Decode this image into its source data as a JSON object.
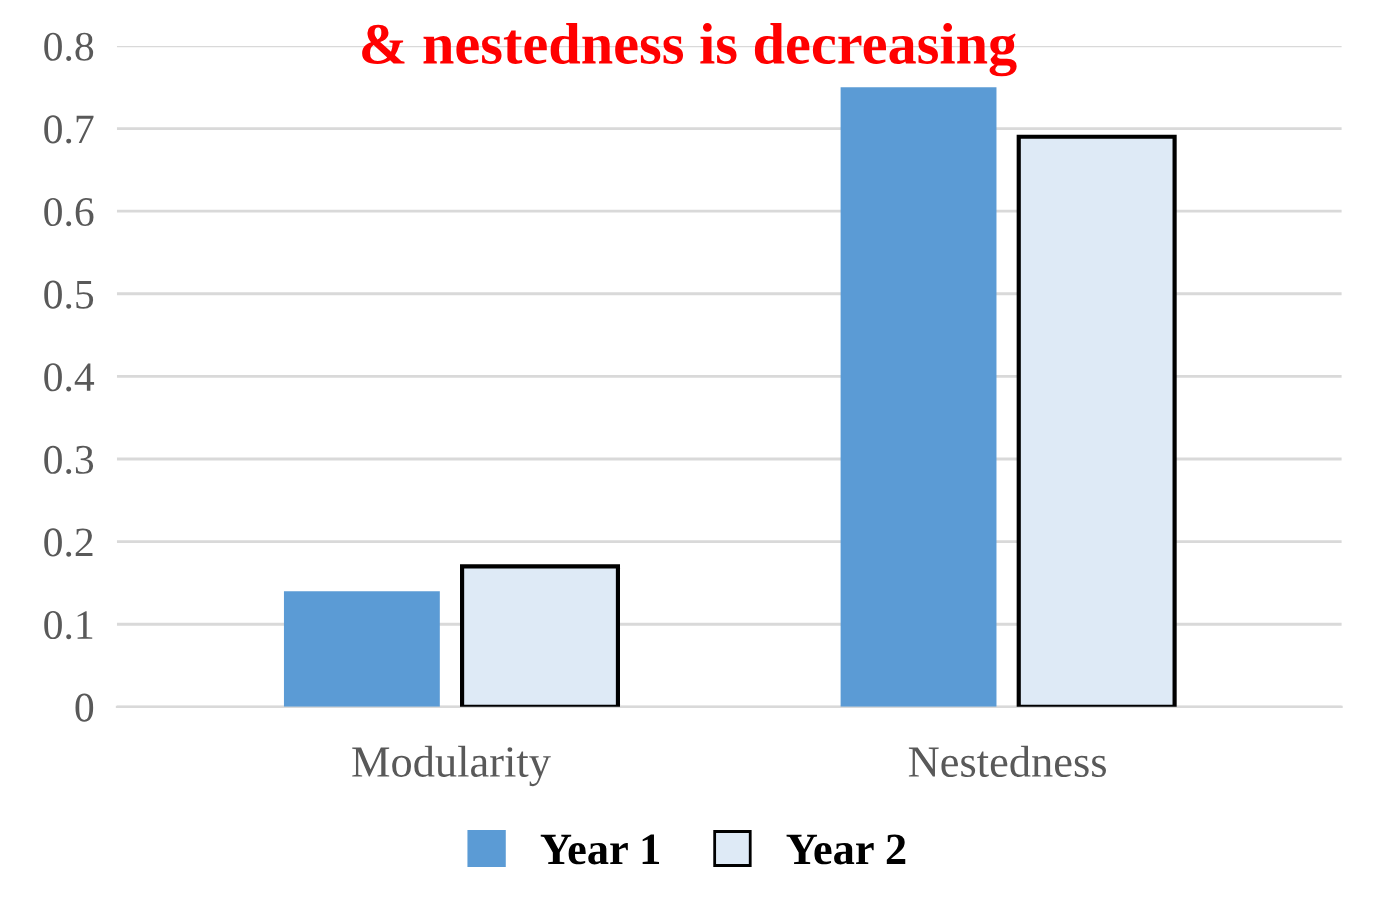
{
  "chart_data": {
    "type": "bar",
    "title": "& nestedness is decreasing",
    "categories": [
      "Modularity",
      "Nestedness"
    ],
    "series": [
      {
        "name": "Year 1",
        "color": "#5b9bd5",
        "values": [
          0.14,
          0.75
        ]
      },
      {
        "name": "Year 2",
        "color": "#deeaf6",
        "values": [
          0.17,
          0.69
        ]
      }
    ],
    "ylim": [
      0,
      0.8
    ],
    "yticks": [
      0,
      0.1,
      0.2,
      0.3,
      0.4,
      0.5,
      0.6,
      0.7,
      0.8
    ],
    "grid": "y",
    "legend": "bottom"
  }
}
